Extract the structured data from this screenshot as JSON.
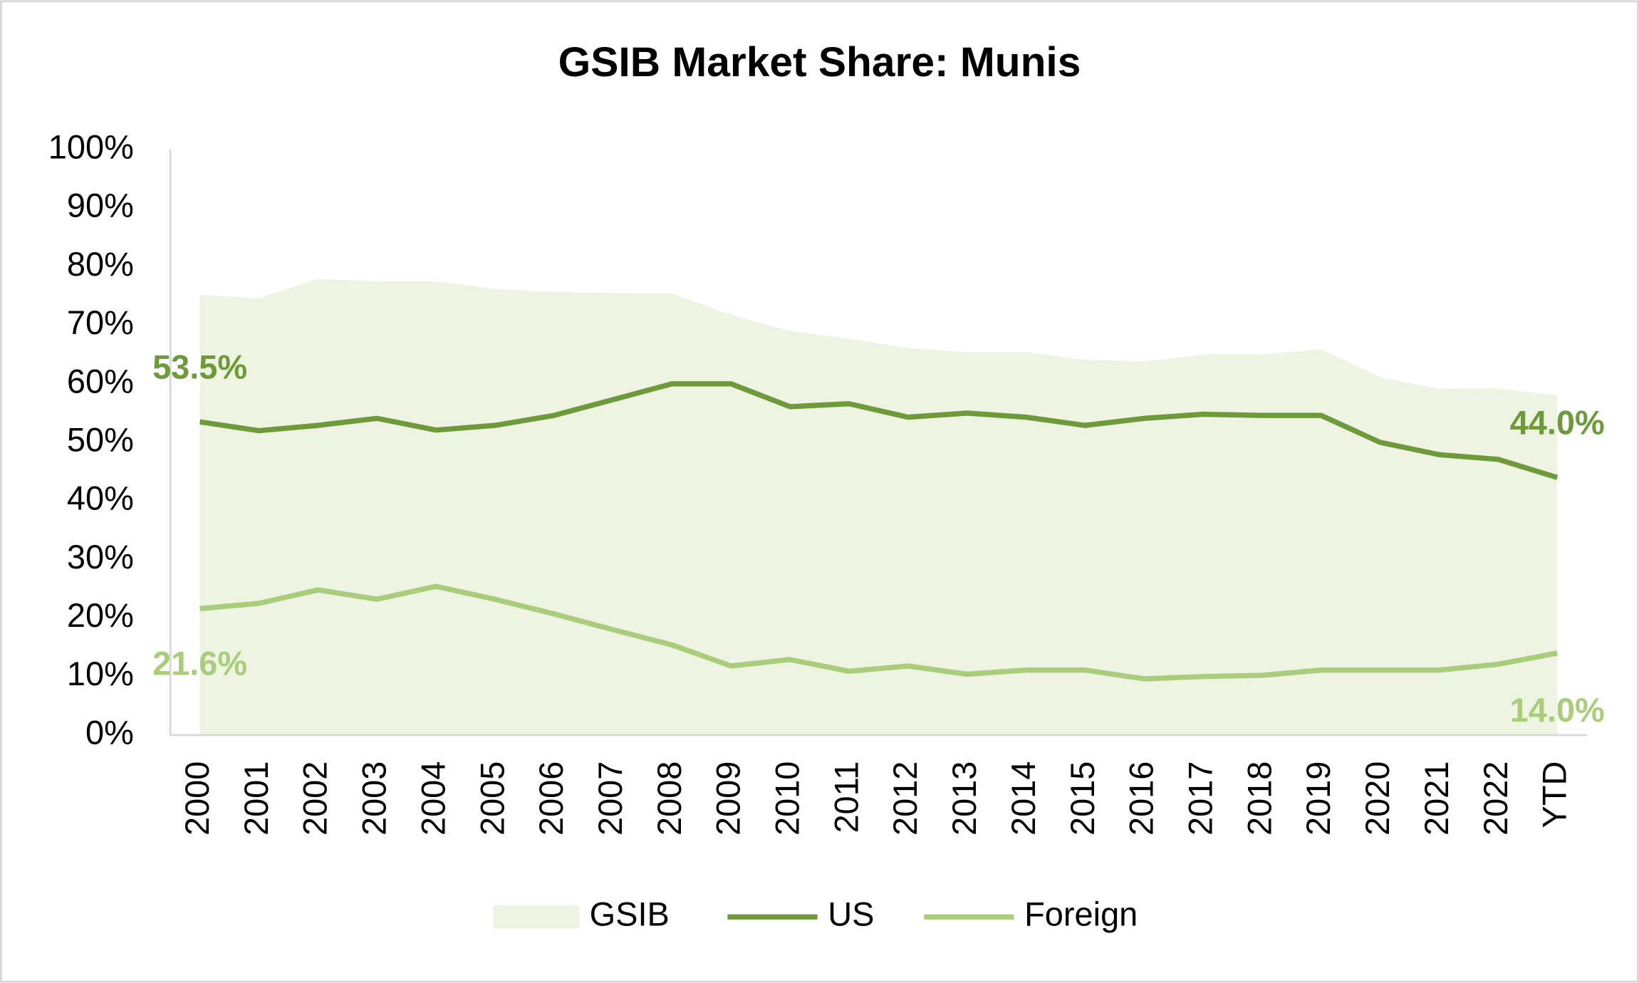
{
  "chart_data": {
    "type": "line",
    "title": "GSIB Market Share: Munis",
    "categories": [
      "2000",
      "2001",
      "2002",
      "2003",
      "2004",
      "2005",
      "2006",
      "2007",
      "2008",
      "2009",
      "2010",
      "2011",
      "2012",
      "2013",
      "2014",
      "2015",
      "2016",
      "2017",
      "2018",
      "2019",
      "2020",
      "2021",
      "2022",
      "YTD"
    ],
    "series": [
      {
        "name": "GSIB",
        "color": "#eef3e2",
        "fill": "area",
        "values": [
          75.2,
          74.6,
          77.9,
          77.5,
          77.5,
          76.2,
          75.7,
          75.5,
          75.4,
          71.8,
          69.0,
          67.7,
          66.1,
          65.4,
          65.4,
          64.1,
          63.8,
          65.0,
          65.0,
          65.9,
          61.1,
          59.1,
          59.2,
          58.0
        ]
      },
      {
        "name": "US",
        "color": "#6f9a3c",
        "values": [
          53.5,
          52.0,
          52.9,
          54.1,
          52.1,
          52.9,
          54.6,
          57.3,
          60.0,
          60.0,
          56.1,
          56.6,
          54.3,
          55.0,
          54.3,
          52.9,
          54.1,
          54.8,
          54.6,
          54.6,
          50.0,
          47.9,
          47.1,
          44.0
        ],
        "value_labels": [
          "53.5%",
          null,
          null,
          null,
          null,
          null,
          null,
          null,
          null,
          null,
          null,
          null,
          null,
          null,
          null,
          null,
          null,
          null,
          null,
          null,
          null,
          null,
          null,
          "44.0%"
        ]
      },
      {
        "name": "Foreign",
        "color": "#a9cd7a",
        "values": [
          21.6,
          22.5,
          24.8,
          23.2,
          25.4,
          23.2,
          20.7,
          18.0,
          15.4,
          11.8,
          12.9,
          10.9,
          11.8,
          10.4,
          11.1,
          11.1,
          9.6,
          10.0,
          10.2,
          11.1,
          11.1,
          11.1,
          12.1,
          14.0
        ],
        "value_labels": [
          "21.6%",
          null,
          null,
          null,
          null,
          null,
          null,
          null,
          null,
          null,
          null,
          null,
          null,
          null,
          null,
          null,
          null,
          null,
          null,
          null,
          null,
          null,
          null,
          "14.0%"
        ]
      }
    ],
    "ylim": [
      0,
      100
    ],
    "yticks": [
      {
        "value": 0,
        "label": "0%"
      },
      {
        "value": 10,
        "label": "10%"
      },
      {
        "value": 20,
        "label": "20%"
      },
      {
        "value": 30,
        "label": "30%"
      },
      {
        "value": 40,
        "label": "40%"
      },
      {
        "value": 50,
        "label": "50%"
      },
      {
        "value": 60,
        "label": "60%"
      },
      {
        "value": 70,
        "label": "70%"
      },
      {
        "value": 80,
        "label": "80%"
      },
      {
        "value": 90,
        "label": "90%"
      },
      {
        "value": 100,
        "label": "100%"
      }
    ],
    "grid": false,
    "legend": "bottom"
  }
}
